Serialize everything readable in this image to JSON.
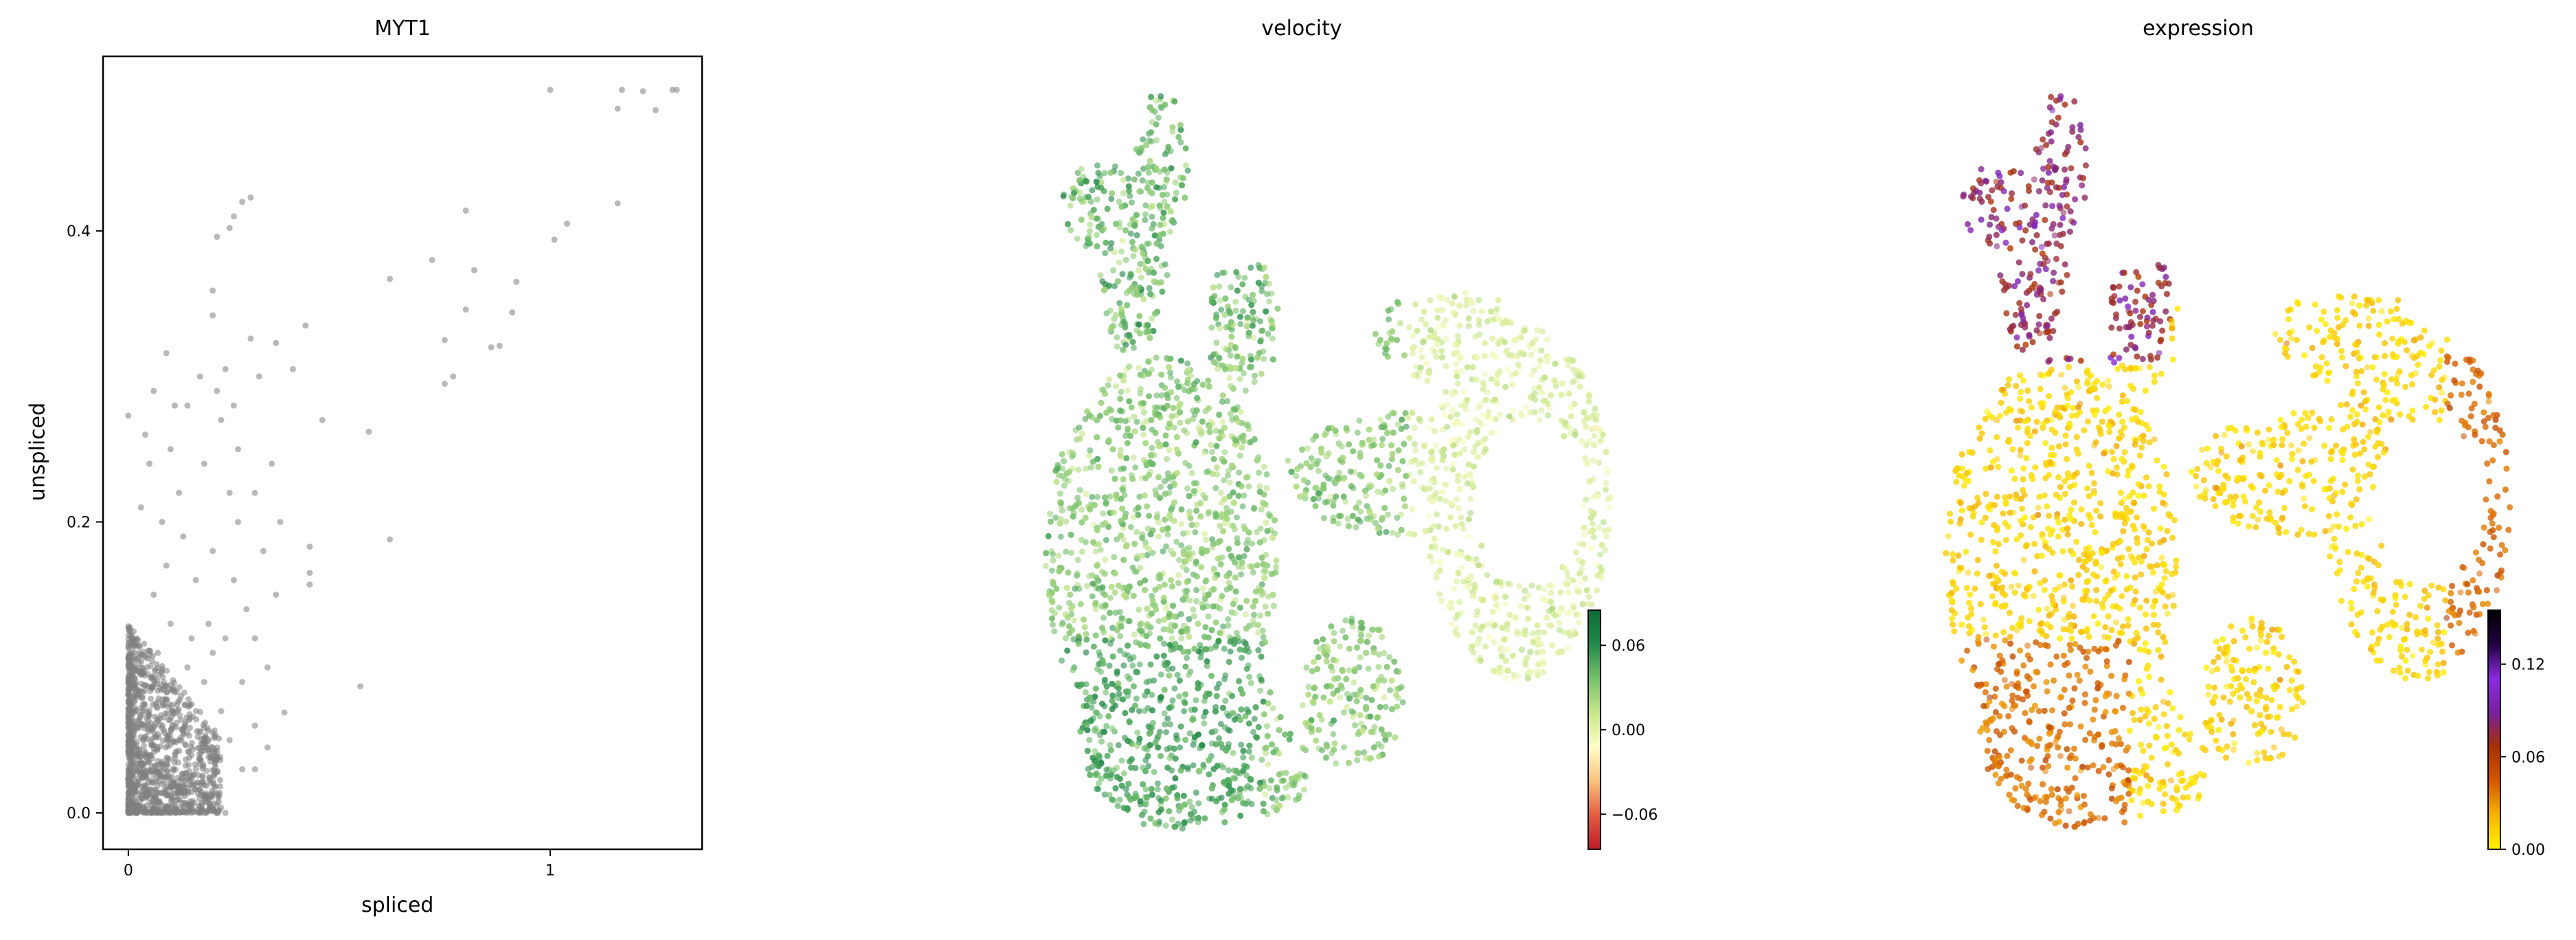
{
  "chart_data": [
    {
      "type": "scatter",
      "title": "MYT1",
      "xlabel": "spliced",
      "ylabel": "unspliced",
      "xlim": [
        -0.06,
        1.36
      ],
      "ylim": [
        -0.025,
        0.52
      ],
      "xticks": [
        0,
        1
      ],
      "xtick_labels": [
        "0",
        "1"
      ],
      "yticks": [
        0.0,
        0.2,
        0.4
      ],
      "ytick_labels": [
        "0.0",
        "0.2",
        "0.4"
      ],
      "grid": false,
      "point_color": "#808080",
      "points": [
        [
          1.0,
          0.497
        ],
        [
          1.17,
          0.497
        ],
        [
          1.22,
          0.496
        ],
        [
          1.29,
          0.497
        ],
        [
          1.3,
          0.497
        ],
        [
          1.16,
          0.484
        ],
        [
          1.25,
          0.483
        ],
        [
          0.27,
          0.42
        ],
        [
          0.29,
          0.423
        ],
        [
          0.25,
          0.41
        ],
        [
          0.24,
          0.402
        ],
        [
          0.21,
          0.396
        ],
        [
          1.04,
          0.405
        ],
        [
          1.01,
          0.394
        ],
        [
          1.16,
          0.419
        ],
        [
          0.8,
          0.414
        ],
        [
          0.72,
          0.38
        ],
        [
          0.82,
          0.373
        ],
        [
          0.92,
          0.365
        ],
        [
          0.8,
          0.346
        ],
        [
          0.75,
          0.325
        ],
        [
          0.91,
          0.344
        ],
        [
          0.62,
          0.367
        ],
        [
          0.86,
          0.32
        ],
        [
          0.88,
          0.321
        ],
        [
          0.77,
          0.3
        ],
        [
          0.75,
          0.295
        ],
        [
          0.35,
          0.323
        ],
        [
          0.42,
          0.335
        ],
        [
          0.39,
          0.305
        ],
        [
          0.46,
          0.27
        ],
        [
          0.57,
          0.262
        ],
        [
          0.62,
          0.188
        ],
        [
          0.55,
          0.087
        ],
        [
          0.43,
          0.183
        ],
        [
          0.43,
          0.165
        ],
        [
          0.43,
          0.157
        ],
        [
          0.37,
          0.069
        ],
        [
          0.2,
          0.359
        ],
        [
          0.2,
          0.342
        ],
        [
          0.09,
          0.316
        ],
        [
          0.0,
          0.273
        ],
        [
          0.29,
          0.326
        ],
        [
          0.23,
          0.305
        ],
        [
          0.25,
          0.28
        ],
        [
          0.31,
          0.3
        ],
        [
          0.34,
          0.24
        ],
        [
          0.3,
          0.22
        ],
        [
          0.26,
          0.25
        ],
        [
          0.22,
          0.27
        ],
        [
          0.18,
          0.24
        ],
        [
          0.14,
          0.28
        ],
        [
          0.12,
          0.22
        ],
        [
          0.1,
          0.25
        ],
        [
          0.08,
          0.2
        ],
        [
          0.05,
          0.24
        ],
        [
          0.03,
          0.21
        ],
        [
          0.2,
          0.18
        ],
        [
          0.25,
          0.16
        ],
        [
          0.28,
          0.14
        ],
        [
          0.3,
          0.12
        ],
        [
          0.33,
          0.1
        ],
        [
          0.35,
          0.15
        ],
        [
          0.15,
          0.12
        ],
        [
          0.18,
          0.09
        ],
        [
          0.22,
          0.07
        ],
        [
          0.24,
          0.05
        ],
        [
          0.27,
          0.03
        ],
        [
          0.3,
          0.03
        ],
        [
          0.12,
          0.05
        ],
        [
          0.16,
          0.16
        ],
        [
          0.13,
          0.19
        ],
        [
          0.09,
          0.17
        ],
        [
          0.06,
          0.15
        ],
        [
          0.1,
          0.13
        ],
        [
          0.07,
          0.11
        ],
        [
          0.2,
          0.11
        ],
        [
          0.26,
          0.2
        ],
        [
          0.32,
          0.18
        ],
        [
          0.36,
          0.2
        ],
        [
          0.24,
          0.22
        ],
        [
          0.21,
          0.29
        ],
        [
          0.17,
          0.3
        ],
        [
          0.11,
          0.28
        ],
        [
          0.04,
          0.26
        ],
        [
          0.06,
          0.29
        ],
        [
          0.14,
          0.1
        ],
        [
          0.19,
          0.13
        ],
        [
          0.23,
          0.12
        ],
        [
          0.27,
          0.09
        ],
        [
          0.3,
          0.06
        ],
        [
          0.33,
          0.045
        ],
        [
          0.2,
          0.045
        ],
        [
          0.16,
          0.03
        ],
        [
          0.12,
          0.015
        ],
        [
          0.08,
          0.02
        ],
        [
          0.05,
          0.04
        ],
        [
          0.02,
          0.12
        ],
        [
          0.1,
          0.0
        ],
        [
          0.14,
          0.0
        ],
        [
          0.18,
          0.0
        ],
        [
          0.23,
          0.0
        ],
        [
          0.07,
          0.0
        ],
        [
          0.04,
          0.0
        ],
        [
          0.02,
          0.0
        ],
        [
          0.0,
          0.0
        ]
      ],
      "dense_region": {
        "x": [
          0.0,
          0.22
        ],
        "y": [
          0.0,
          0.13
        ],
        "count": 1200
      }
    },
    {
      "type": "scatter",
      "title": "velocity",
      "colorbar": {
        "ticks": [
          -0.06,
          0.0,
          0.06
        ],
        "tick_labels": [
          "−0.06",
          "0.00",
          "0.06"
        ],
        "range": [
          -0.085,
          0.085
        ],
        "colors": [
          "#bd1c2a",
          "#e35b3f",
          "#f9c27a",
          "#fffec8",
          "#c8e687",
          "#76c16b",
          "#1f8a49",
          "#0d6b35"
        ]
      },
      "axes_visible": false
    },
    {
      "type": "scatter",
      "title": "expression",
      "colorbar": {
        "ticks": [
          0.0,
          0.06,
          0.12
        ],
        "tick_labels": [
          "0.00",
          "0.06",
          "0.12"
        ],
        "range": [
          0.0,
          0.155
        ],
        "colors": [
          "#fff200",
          "#f7b300",
          "#d45700",
          "#a73000",
          "#7a1fa0",
          "#8b2be2",
          "#200040",
          "#000000"
        ]
      },
      "axes_visible": false
    }
  ]
}
